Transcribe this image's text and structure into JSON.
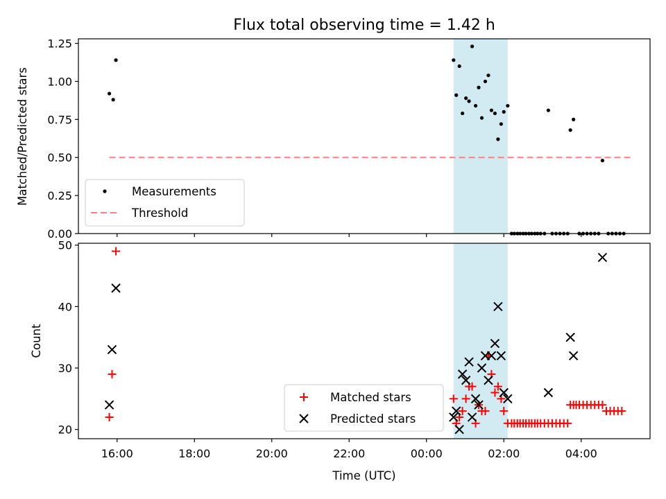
{
  "title": "Flux total observing time = 1.42 h",
  "colors": {
    "measure": "#000000",
    "threshold": "#ff7f7f",
    "matched": "#ff0000",
    "predicted": "#000000",
    "span": "#add8e6"
  },
  "x_axis": {
    "label": "Time (UTC)",
    "range_hours": [
      15.0,
      29.78
    ],
    "ticks": [
      {
        "value": 16,
        "label": "16:00"
      },
      {
        "value": 18,
        "label": "18:00"
      },
      {
        "value": 20,
        "label": "20:00"
      },
      {
        "value": 22,
        "label": "22:00"
      },
      {
        "value": 24,
        "label": "00:00"
      },
      {
        "value": 26,
        "label": "02:00"
      },
      {
        "value": 28,
        "label": "04:00"
      }
    ]
  },
  "chart_data": [
    {
      "type": "scatter",
      "panel": "top",
      "ylabel": "Matched/Predicted stars",
      "ylim": [
        0,
        1.28
      ],
      "yticks": [
        "0.00",
        "0.25",
        "0.50",
        "0.75",
        "1.00",
        "1.25"
      ],
      "highlight_span": [
        24.7,
        26.1
      ],
      "legend": {
        "placement": "lower-left",
        "entries": [
          "Measurements",
          "Threshold"
        ]
      },
      "threshold": {
        "name": "Threshold",
        "y": 0.5,
        "x": [
          15.8,
          29.3
        ]
      },
      "series": [
        {
          "name": "Measurements",
          "x": [
            15.8,
            15.9,
            15.97,
            24.7,
            24.77,
            24.85,
            24.93,
            25.02,
            25.1,
            25.18,
            25.27,
            25.35,
            25.43,
            25.52,
            25.6,
            25.68,
            25.77,
            25.85,
            25.93,
            26.0,
            26.1,
            26.2,
            26.27,
            26.35,
            26.42,
            26.5,
            26.57,
            26.65,
            26.72,
            26.8,
            26.87,
            26.95,
            27.05,
            27.15,
            27.25,
            27.35,
            27.45,
            27.55,
            27.65,
            27.72,
            27.8,
            27.95,
            28.05,
            28.15,
            28.25,
            28.35,
            28.45,
            28.55,
            28.7,
            28.8,
            28.9,
            29.0,
            29.1
          ],
          "y": [
            0.92,
            0.88,
            1.14,
            1.14,
            0.91,
            1.1,
            0.79,
            0.89,
            0.87,
            1.23,
            0.84,
            0.96,
            0.76,
            1.0,
            1.04,
            0.81,
            0.79,
            0.62,
            0.72,
            0.8,
            0.84,
            0.0,
            0.0,
            0.0,
            0.0,
            0.0,
            0.0,
            0.0,
            0.0,
            0.0,
            0.0,
            0.0,
            0.0,
            0.81,
            0.0,
            0.0,
            0.0,
            0.0,
            0.0,
            0.68,
            0.75,
            0.0,
            0.0,
            0.0,
            0.0,
            0.0,
            0.0,
            0.48,
            0.0,
            0.0,
            0.0,
            0.0,
            0.0
          ]
        }
      ]
    },
    {
      "type": "scatter",
      "panel": "bottom",
      "xlabel": "Time (UTC)",
      "ylabel": "Count",
      "ylim": [
        18.5,
        50.3
      ],
      "yticks": [
        "20",
        "30",
        "40",
        "50"
      ],
      "highlight_span": [
        24.7,
        26.1
      ],
      "legend": {
        "placement": "lower-center",
        "entries": [
          "Matched stars",
          "Predicted stars"
        ]
      },
      "series": [
        {
          "name": "Matched stars",
          "marker": "+",
          "x": [
            15.8,
            15.87,
            15.97,
            24.7,
            24.77,
            24.85,
            24.93,
            25.02,
            25.1,
            25.18,
            25.27,
            25.35,
            25.43,
            25.52,
            25.6,
            25.68,
            25.77,
            25.85,
            25.93,
            26.0,
            26.1,
            26.2,
            26.27,
            26.35,
            26.42,
            26.5,
            26.57,
            26.65,
            26.72,
            26.8,
            26.87,
            26.95,
            27.05,
            27.15,
            27.25,
            27.35,
            27.45,
            27.55,
            27.65,
            27.72,
            27.8,
            27.87,
            27.95,
            28.05,
            28.15,
            28.25,
            28.35,
            28.45,
            28.55,
            28.65,
            28.75,
            28.85,
            28.95,
            29.05
          ],
          "y": [
            22,
            29,
            49,
            25,
            21,
            22,
            23,
            25,
            27,
            27,
            21,
            24,
            23,
            23,
            32,
            29,
            26,
            27,
            25,
            23,
            21,
            21,
            21,
            21,
            21,
            21,
            21,
            21,
            21,
            21,
            21,
            21,
            21,
            21,
            21,
            21,
            21,
            21,
            21,
            24,
            24,
            24,
            24,
            24,
            24,
            24,
            24,
            24,
            24,
            23,
            23,
            23,
            23,
            23
          ]
        },
        {
          "name": "Predicted stars",
          "marker": "x",
          "x": [
            15.8,
            15.87,
            15.97,
            24.7,
            24.77,
            24.85,
            24.93,
            25.02,
            25.1,
            25.18,
            25.27,
            25.35,
            25.43,
            25.52,
            25.6,
            25.68,
            25.77,
            25.85,
            25.93,
            26.0,
            26.1,
            27.15,
            27.72,
            27.8,
            28.55
          ],
          "y": [
            24,
            33,
            43,
            22,
            23,
            20,
            29,
            28,
            31,
            22,
            25,
            24,
            30,
            32,
            28,
            32,
            34,
            40,
            32,
            26,
            25,
            26,
            35,
            32,
            48
          ]
        }
      ]
    }
  ]
}
